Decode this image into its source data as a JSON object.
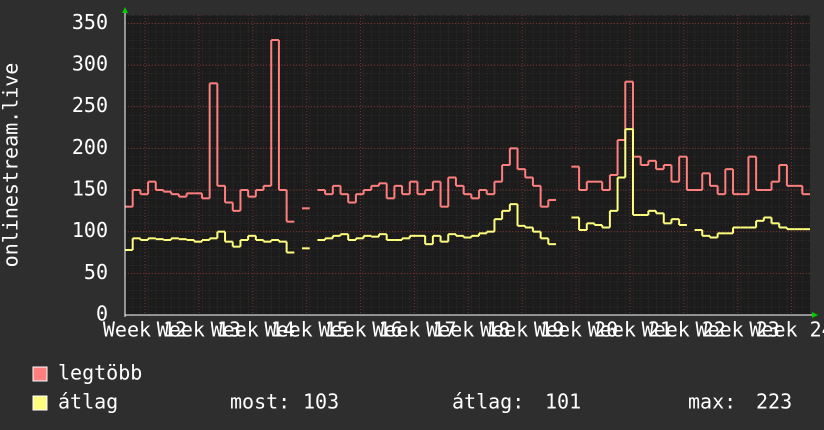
{
  "chart_data": {
    "type": "line",
    "ylabel": "onlinestream.live",
    "ylim": [
      0,
      360
    ],
    "yticks": [
      0,
      50,
      100,
      150,
      200,
      250,
      300,
      350
    ],
    "xlim": [
      0,
      89
    ],
    "xticks": [
      {
        "value": 2.6,
        "label": "Week 12"
      },
      {
        "value": 9.6,
        "label": "Week 13"
      },
      {
        "value": 16.6,
        "label": "Week 14"
      },
      {
        "value": 23.6,
        "label": "Week 15"
      },
      {
        "value": 30.6,
        "label": "Week 16"
      },
      {
        "value": 37.6,
        "label": "Week 17"
      },
      {
        "value": 44.6,
        "label": "Week 18"
      },
      {
        "value": 51.6,
        "label": "Week 19"
      },
      {
        "value": 58.6,
        "label": "Week 20"
      },
      {
        "value": 65.6,
        "label": "Week 21"
      },
      {
        "value": 72.6,
        "label": "Week 22"
      },
      {
        "value": 79.6,
        "label": "Week 23"
      },
      {
        "value": 86.6,
        "label": "Week 24"
      }
    ],
    "grid": true,
    "series": [
      {
        "name": "legtöbb",
        "color": "#ff7f7f",
        "values": [
          130,
          150,
          145,
          160,
          150,
          148,
          145,
          142,
          146,
          146,
          140,
          278,
          155,
          135,
          125,
          150,
          142,
          150,
          155,
          330,
          150,
          112,
          null,
          128,
          null,
          150,
          145,
          155,
          145,
          135,
          145,
          150,
          155,
          158,
          140,
          155,
          145,
          160,
          145,
          150,
          160,
          130,
          165,
          155,
          145,
          140,
          150,
          145,
          160,
          180,
          200,
          175,
          165,
          155,
          130,
          138,
          null,
          null,
          178,
          150,
          160,
          160,
          150,
          168,
          210,
          280,
          190,
          180,
          185,
          175,
          180,
          160,
          190,
          150,
          150,
          170,
          155,
          145,
          175,
          145,
          145,
          190,
          150,
          150,
          160,
          180,
          155,
          155,
          145
        ]
      },
      {
        "name": "átlag",
        "color": "#ffff7f",
        "values": [
          78,
          92,
          90,
          92,
          91,
          90,
          92,
          91,
          90,
          88,
          90,
          92,
          100,
          88,
          82,
          90,
          95,
          90,
          88,
          90,
          88,
          75,
          null,
          80,
          null,
          90,
          92,
          95,
          97,
          90,
          92,
          95,
          94,
          97,
          90,
          90,
          92,
          95,
          95,
          85,
          95,
          88,
          97,
          95,
          93,
          95,
          98,
          100,
          115,
          125,
          133,
          107,
          105,
          100,
          92,
          85,
          null,
          null,
          117,
          102,
          110,
          108,
          105,
          125,
          165,
          223,
          120,
          120,
          125,
          122,
          110,
          115,
          108,
          null,
          102,
          95,
          93,
          98,
          98,
          105,
          105,
          105,
          113,
          117,
          110,
          105,
          103,
          103,
          103
        ]
      }
    ],
    "stats": [
      {
        "label": "most:",
        "value": 103
      },
      {
        "label": "átlag:",
        "value": 101
      },
      {
        "label": "max:",
        "value": 223
      }
    ]
  }
}
